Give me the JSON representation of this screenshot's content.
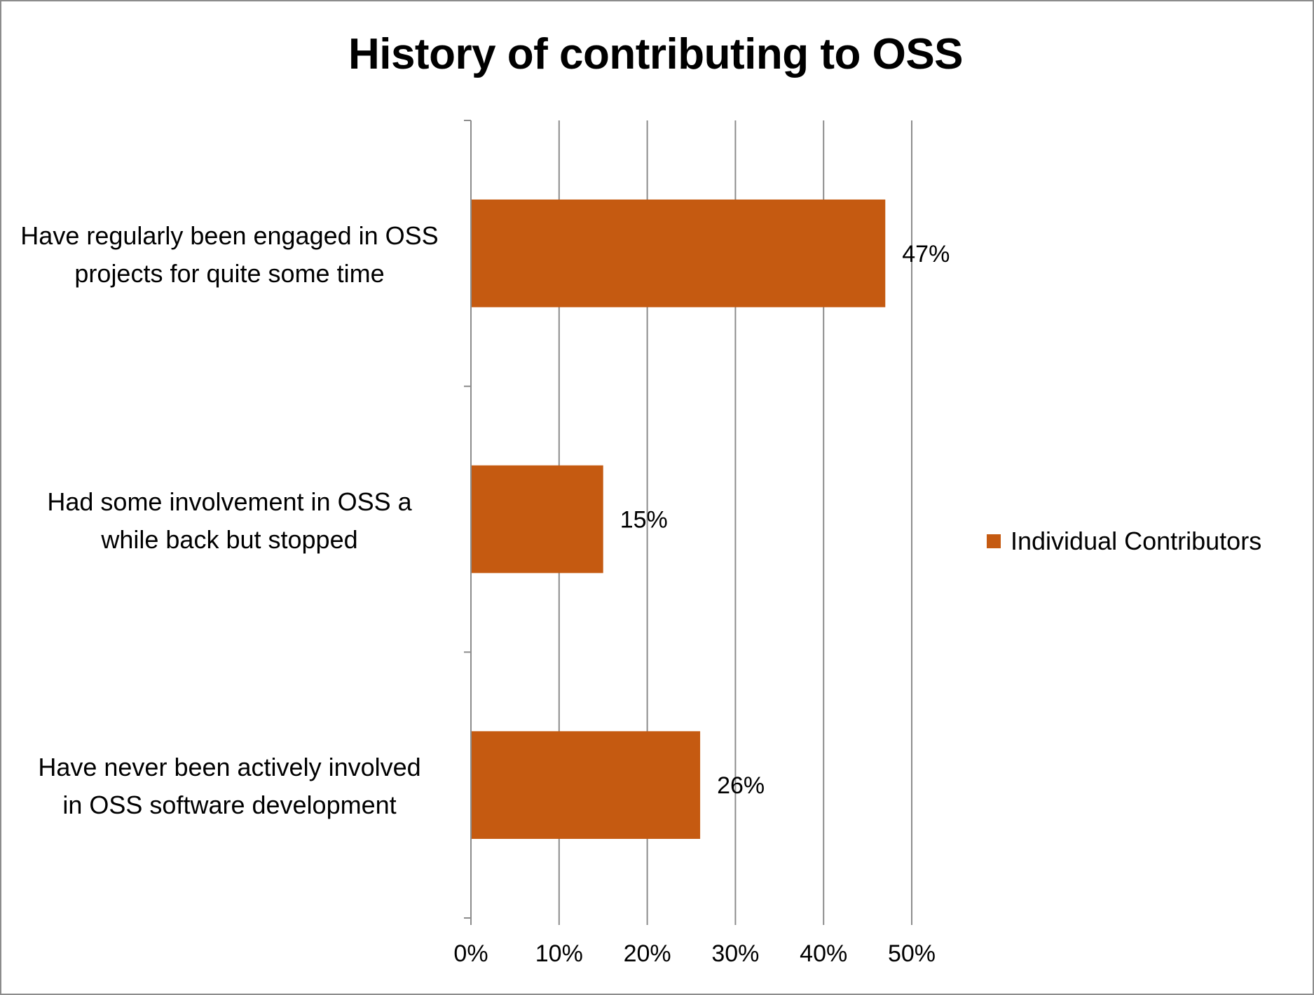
{
  "chart_data": {
    "type": "bar",
    "orientation": "horizontal",
    "title": "History of contributing to OSS",
    "categories": [
      "Have regularly been engaged in OSS projects for quite some time",
      "Had some involvement in OSS a while back but stopped",
      "Have never been actively involved in OSS software development"
    ],
    "category_lines": [
      [
        "Have regularly been engaged in OSS",
        "projects for quite some time"
      ],
      [
        "Had some involvement in OSS a",
        "while back but stopped"
      ],
      [
        "Have never been actively involved",
        "in OSS software development"
      ]
    ],
    "series": [
      {
        "name": "Individual Contributors",
        "values": [
          47,
          15,
          26
        ],
        "color": "#c55a11"
      }
    ],
    "data_labels": [
      "47%",
      "15%",
      "26%"
    ],
    "xlim": [
      0,
      50
    ],
    "xticks": [
      0,
      10,
      20,
      30,
      40,
      50
    ],
    "xtick_labels": [
      "0%",
      "10%",
      "20%",
      "30%",
      "40%",
      "50%"
    ],
    "grid": "vertical",
    "legend_position": "right"
  }
}
